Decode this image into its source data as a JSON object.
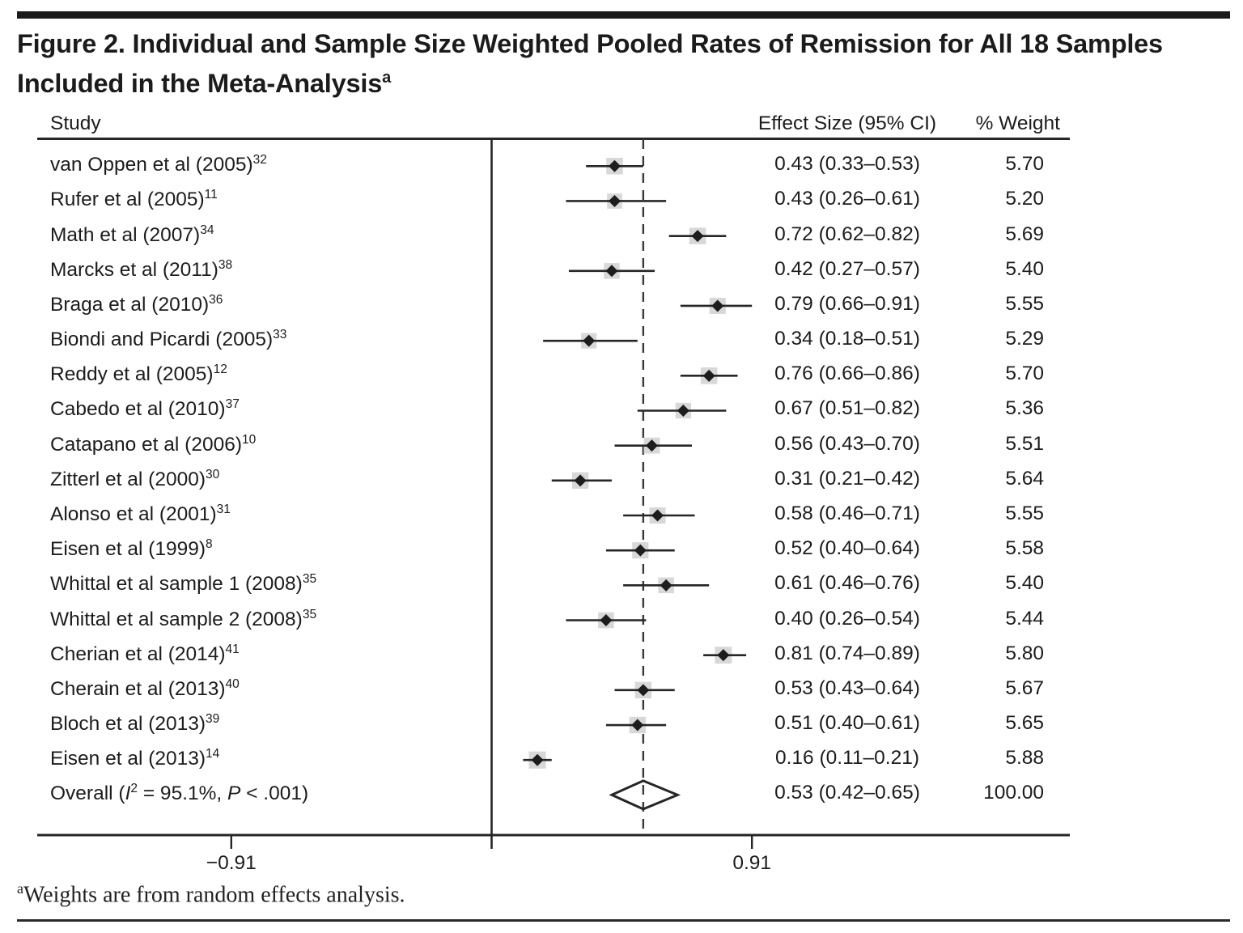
{
  "figure": {
    "title_line1": "Figure 2. Individual and Sample Size Weighted Pooled Rates of Remission for All 18 Samples",
    "title_line2": "Included in the Meta-Analysis",
    "title_superscript": "a",
    "footnote_superscript": "a",
    "footnote_text": "Weights are from random effects analysis."
  },
  "chart_data": {
    "type": "forest",
    "title": "Individual and Sample Size Weighted Pooled Rates of Remission for All 18 Samples Included in the Meta-Analysis",
    "columns": {
      "study": "Study",
      "effect": "Effect Size (95% CI)",
      "weight": "% Weight"
    },
    "axis": {
      "tick_values": [
        -0.91,
        0.91
      ],
      "tick_labels": [
        "−0.91",
        "0.91"
      ],
      "zero_line": 0,
      "pooled_dashed_line": 0.53,
      "xlim": [
        -1.6,
        2.05
      ],
      "grid": false
    },
    "studies": [
      {
        "label": "van Oppen et al (2005)",
        "ref": "32",
        "est": 0.43,
        "lo": 0.33,
        "hi": 0.53,
        "effect_text": "0.43 (0.33–0.53)",
        "weight": 5.7,
        "weight_text": "5.70"
      },
      {
        "label": "Rufer et al (2005)",
        "ref": "11",
        "est": 0.43,
        "lo": 0.26,
        "hi": 0.61,
        "effect_text": "0.43 (0.26–0.61)",
        "weight": 5.2,
        "weight_text": "5.20"
      },
      {
        "label": "Math et al (2007)",
        "ref": "34",
        "est": 0.72,
        "lo": 0.62,
        "hi": 0.82,
        "effect_text": "0.72 (0.62–0.82)",
        "weight": 5.69,
        "weight_text": "5.69"
      },
      {
        "label": "Marcks et al (2011)",
        "ref": "38",
        "est": 0.42,
        "lo": 0.27,
        "hi": 0.57,
        "effect_text": "0.42 (0.27–0.57)",
        "weight": 5.4,
        "weight_text": "5.40"
      },
      {
        "label": "Braga et al (2010)",
        "ref": "36",
        "est": 0.79,
        "lo": 0.66,
        "hi": 0.91,
        "effect_text": "0.79 (0.66–0.91)",
        "weight": 5.55,
        "weight_text": "5.55"
      },
      {
        "label": "Biondi and Picardi (2005)",
        "ref": "33",
        "est": 0.34,
        "lo": 0.18,
        "hi": 0.51,
        "effect_text": "0.34 (0.18–0.51)",
        "weight": 5.29,
        "weight_text": "5.29"
      },
      {
        "label": "Reddy et al (2005)",
        "ref": "12",
        "est": 0.76,
        "lo": 0.66,
        "hi": 0.86,
        "effect_text": "0.76 (0.66–0.86)",
        "weight": 5.7,
        "weight_text": "5.70"
      },
      {
        "label": "Cabedo et al (2010)",
        "ref": "37",
        "est": 0.67,
        "lo": 0.51,
        "hi": 0.82,
        "effect_text": "0.67 (0.51–0.82)",
        "weight": 5.36,
        "weight_text": "5.36"
      },
      {
        "label": "Catapano et al (2006)",
        "ref": "10",
        "est": 0.56,
        "lo": 0.43,
        "hi": 0.7,
        "effect_text": "0.56 (0.43–0.70)",
        "weight": 5.51,
        "weight_text": "5.51"
      },
      {
        "label": "Zitterl et al (2000)",
        "ref": "30",
        "est": 0.31,
        "lo": 0.21,
        "hi": 0.42,
        "effect_text": "0.31 (0.21–0.42)",
        "weight": 5.64,
        "weight_text": "5.64"
      },
      {
        "label": "Alonso et al (2001)",
        "ref": "31",
        "est": 0.58,
        "lo": 0.46,
        "hi": 0.71,
        "effect_text": "0.58 (0.46–0.71)",
        "weight": 5.55,
        "weight_text": "5.55"
      },
      {
        "label": "Eisen et al (1999)",
        "ref": "8",
        "est": 0.52,
        "lo": 0.4,
        "hi": 0.64,
        "effect_text": "0.52 (0.40–0.64)",
        "weight": 5.58,
        "weight_text": "5.58"
      },
      {
        "label": "Whittal et al sample 1 (2008)",
        "ref": "35",
        "est": 0.61,
        "lo": 0.46,
        "hi": 0.76,
        "effect_text": "0.61 (0.46–0.76)",
        "weight": 5.4,
        "weight_text": "5.40"
      },
      {
        "label": "Whittal et al sample 2 (2008)",
        "ref": "35",
        "est": 0.4,
        "lo": 0.26,
        "hi": 0.54,
        "effect_text": "0.40 (0.26–0.54)",
        "weight": 5.44,
        "weight_text": "5.44"
      },
      {
        "label": "Cherian et al (2014)",
        "ref": "41",
        "est": 0.81,
        "lo": 0.74,
        "hi": 0.89,
        "effect_text": "0.81 (0.74–0.89)",
        "weight": 5.8,
        "weight_text": "5.80"
      },
      {
        "label": "Cherain et al (2013)",
        "ref": "40",
        "est": 0.53,
        "lo": 0.43,
        "hi": 0.64,
        "effect_text": "0.53 (0.43–0.64)",
        "weight": 5.67,
        "weight_text": "5.67"
      },
      {
        "label": "Bloch et al (2013)",
        "ref": "39",
        "est": 0.51,
        "lo": 0.4,
        "hi": 0.61,
        "effect_text": "0.51 (0.40–0.61)",
        "weight": 5.65,
        "weight_text": "5.65"
      },
      {
        "label": "Eisen et al (2013)",
        "ref": "14",
        "est": 0.16,
        "lo": 0.11,
        "hi": 0.21,
        "effect_text": "0.16 (0.11–0.21)",
        "weight": 5.88,
        "weight_text": "5.88"
      }
    ],
    "overall": {
      "label_prefix": "Overall (",
      "i_symbol": "I",
      "i_sup": "2",
      "label_mid": " = 95.1%, ",
      "p_symbol": "P",
      "label_suffix": " < .001)",
      "est": 0.53,
      "lo": 0.42,
      "hi": 0.65,
      "effect_text": "0.53 (0.42–0.65)",
      "weight_text": "100.00"
    },
    "colors": {
      "line": "#262626",
      "marker": "#1d1d1d",
      "weight_box": "#d8d8d8",
      "dashed_line": "#3a3a3a",
      "text": "#1c1c1c"
    }
  }
}
